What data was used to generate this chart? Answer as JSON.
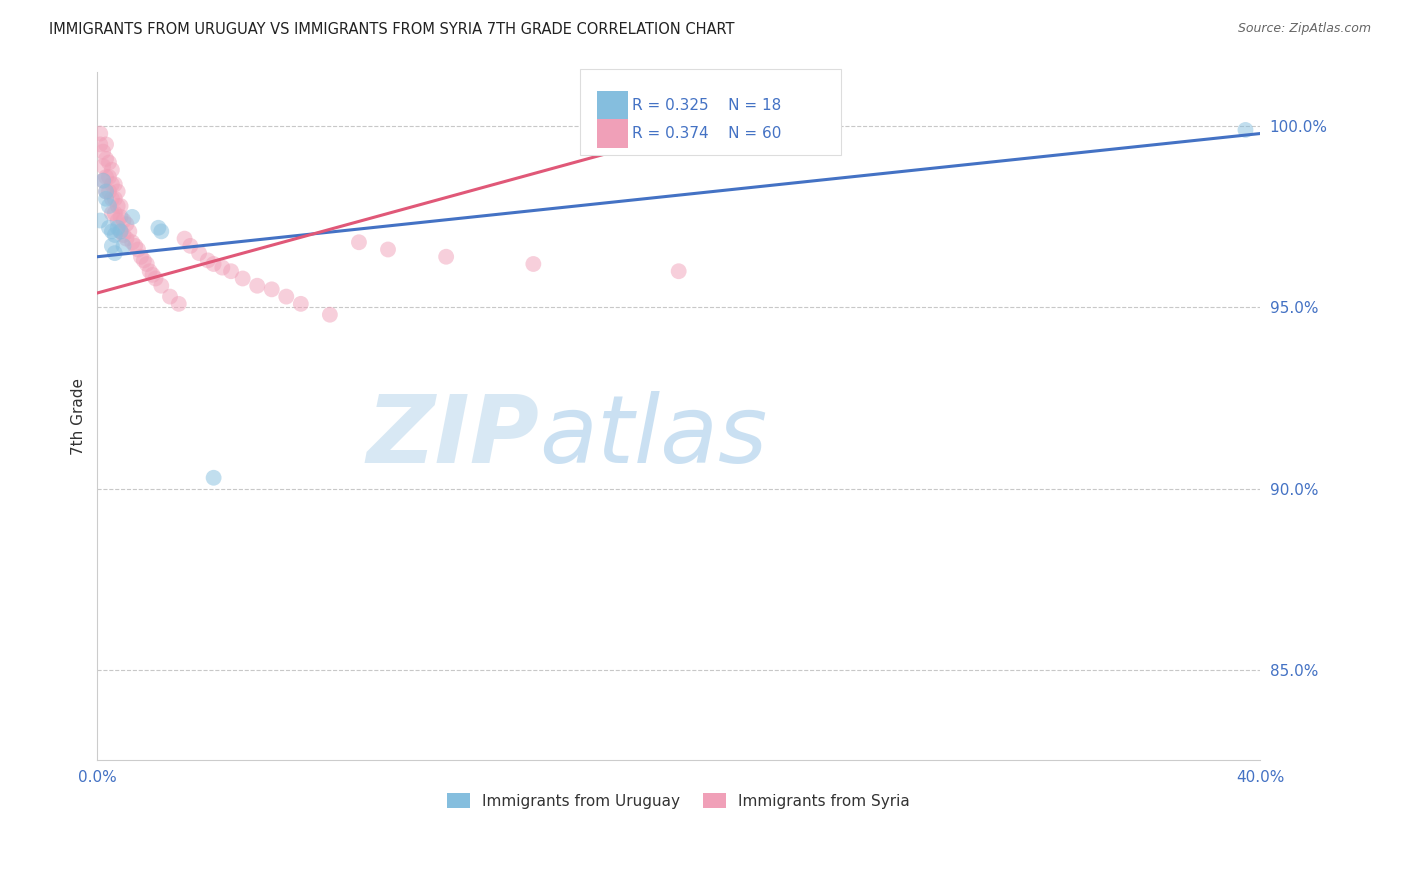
{
  "title": "IMMIGRANTS FROM URUGUAY VS IMMIGRANTS FROM SYRIA 7TH GRADE CORRELATION CHART",
  "source": "Source: ZipAtlas.com",
  "ylabel": "7th Grade",
  "ylabel_right_labels": [
    "100.0%",
    "95.0%",
    "90.0%",
    "85.0%"
  ],
  "ylabel_right_values": [
    1.0,
    0.95,
    0.9,
    0.85
  ],
  "watermark_zip": "ZIP",
  "watermark_atlas": "atlas",
  "legend_r_uruguay": "R = 0.325",
  "legend_n_uruguay": "N = 18",
  "legend_r_syria": "R = 0.374",
  "legend_n_syria": "N = 60",
  "uruguay_color": "#85bede",
  "syria_color": "#f0a0b8",
  "uruguay_line_color": "#4472c4",
  "syria_line_color": "#e05878",
  "title_color": "#222222",
  "source_color": "#666666",
  "grid_color": "#c8c8c8",
  "background_color": "#ffffff",
  "scatter_alpha": 0.5,
  "scatter_size": 130,
  "xlim": [
    0.0,
    0.4
  ],
  "ylim": [
    0.825,
    1.015
  ],
  "uru_line_x": [
    0.0,
    0.4
  ],
  "uru_line_y": [
    0.964,
    0.998
  ],
  "syr_line_x": [
    0.0,
    0.205
  ],
  "syr_line_y": [
    0.954,
    0.999
  ],
  "uruguay_x": [
    0.001,
    0.002,
    0.003,
    0.003,
    0.004,
    0.004,
    0.005,
    0.005,
    0.006,
    0.006,
    0.007,
    0.008,
    0.009,
    0.012,
    0.021,
    0.022,
    0.04,
    0.395
  ],
  "uruguay_y": [
    0.974,
    0.985,
    0.982,
    0.98,
    0.978,
    0.972,
    0.971,
    0.967,
    0.97,
    0.965,
    0.972,
    0.971,
    0.967,
    0.975,
    0.972,
    0.971,
    0.903,
    0.999
  ],
  "syria_x": [
    0.001,
    0.001,
    0.002,
    0.002,
    0.002,
    0.003,
    0.003,
    0.003,
    0.003,
    0.004,
    0.004,
    0.004,
    0.005,
    0.005,
    0.005,
    0.005,
    0.006,
    0.006,
    0.006,
    0.007,
    0.007,
    0.007,
    0.008,
    0.008,
    0.008,
    0.009,
    0.009,
    0.01,
    0.01,
    0.011,
    0.012,
    0.013,
    0.014,
    0.015,
    0.016,
    0.017,
    0.018,
    0.019,
    0.02,
    0.022,
    0.025,
    0.028,
    0.03,
    0.032,
    0.035,
    0.038,
    0.04,
    0.043,
    0.046,
    0.05,
    0.055,
    0.06,
    0.065,
    0.07,
    0.08,
    0.09,
    0.1,
    0.12,
    0.15,
    0.2
  ],
  "syria_y": [
    0.998,
    0.995,
    0.993,
    0.989,
    0.985,
    0.995,
    0.991,
    0.986,
    0.982,
    0.99,
    0.986,
    0.982,
    0.988,
    0.984,
    0.98,
    0.976,
    0.984,
    0.98,
    0.976,
    0.982,
    0.978,
    0.974,
    0.978,
    0.975,
    0.971,
    0.974,
    0.97,
    0.973,
    0.969,
    0.971,
    0.968,
    0.967,
    0.966,
    0.964,
    0.963,
    0.962,
    0.96,
    0.959,
    0.958,
    0.956,
    0.953,
    0.951,
    0.969,
    0.967,
    0.965,
    0.963,
    0.962,
    0.961,
    0.96,
    0.958,
    0.956,
    0.955,
    0.953,
    0.951,
    0.948,
    0.968,
    0.966,
    0.964,
    0.962,
    0.96
  ]
}
